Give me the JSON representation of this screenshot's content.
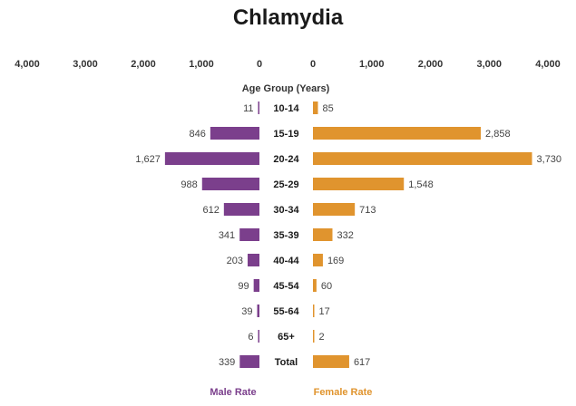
{
  "chart_data": {
    "type": "bar",
    "title": "Chlamydia",
    "category_axis_title": "Age Group (Years)",
    "categories": [
      "10-14",
      "15-19",
      "20-24",
      "25-29",
      "30-34",
      "35-39",
      "40-44",
      "45-54",
      "55-64",
      "65+",
      "Total"
    ],
    "series": [
      {
        "name": "Male Rate",
        "color": "#7b3f8c",
        "values": [
          11,
          846,
          1627,
          988,
          612,
          341,
          203,
          99,
          39,
          6,
          339
        ],
        "value_labels": [
          "11",
          "846",
          "1,627",
          "988",
          "612",
          "341",
          "203",
          "99",
          "39",
          "6",
          "339"
        ]
      },
      {
        "name": "Female Rate",
        "color": "#e0942e",
        "values": [
          85,
          2858,
          3730,
          1548,
          713,
          332,
          169,
          60,
          17,
          2,
          617
        ],
        "value_labels": [
          "85",
          "2,858",
          "3,730",
          "1,548",
          "713",
          "332",
          "169",
          "60",
          "17",
          "2",
          "617"
        ]
      }
    ],
    "left_axis_ticks": [
      "4,000",
      "3,000",
      "2,000",
      "1,000",
      "0"
    ],
    "right_axis_ticks": [
      "0",
      "1,000",
      "2,000",
      "3,000",
      "4,000"
    ],
    "xlim": [
      0,
      4000
    ],
    "grid": false,
    "legend_position": "bottom"
  }
}
